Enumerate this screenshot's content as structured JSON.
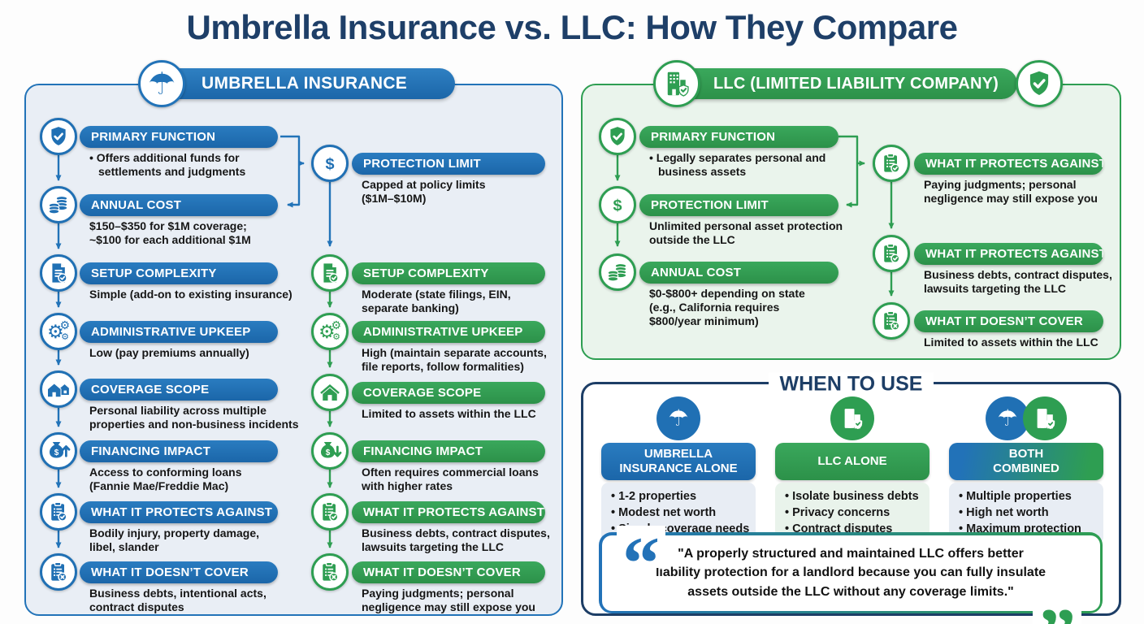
{
  "title": "Umbrella Insurance vs. LLC: How They Compare",
  "colors": {
    "blue": "#2070b4",
    "green": "#2e9e52",
    "navy": "#1d3e66",
    "panel_blue_bg": "#e9eef5",
    "panel_green_bg": "#eaf4ec"
  },
  "left_panel": {
    "header": "UMBRELLA INSURANCE",
    "header_icon": "umbrella-icon",
    "col_a": [
      {
        "icon": "shield-check-icon",
        "title": "PRIMARY FUNCTION",
        "body": "• Offers additional funds for\nsettlements and judgments"
      },
      {
        "icon": "coins-icon",
        "title": "ANNUAL COST",
        "body": "$150–$350 for $1M coverage;\n~$100 for each additional $1M"
      },
      {
        "icon": "document-check-icon",
        "title": "SETUP COMPLEXITY",
        "body": "Simple (add-on to existing insurance)"
      },
      {
        "icon": "gears-icon",
        "title": "ADMINISTRATIVE UPKEEP",
        "body": "Low (pay premiums annually)"
      },
      {
        "icon": "houses-icon",
        "title": "COVERAGE SCOPE",
        "body": "Personal liability across multiple\nproperties and non-business incidents"
      },
      {
        "icon": "money-bag-up-icon",
        "title": "FINANCING IMPACT",
        "body": "Access to conforming loans\n(Fannie Mae/Freddie Mac)"
      },
      {
        "icon": "clipboard-check-icon",
        "title": "WHAT IT PROTECTS AGAINST",
        "body": "Bodily injury, property damage,\nlibel, slander"
      },
      {
        "icon": "clipboard-x-icon",
        "title": "WHAT IT DOESN’T COVER",
        "body": "Business debts, intentional acts,\ncontract disputes"
      }
    ],
    "col_b": [
      {
        "icon": "dollar-icon",
        "title": "PROTECTION LIMIT",
        "body": "Capped at policy limits\n($1M–$10M)"
      },
      {
        "icon": "document-check-icon",
        "title": "SETUP COMPLEXITY",
        "body": "Moderate (state filings, EIN,\nseparate banking)"
      },
      {
        "icon": "gears-icon",
        "title": "ADMINISTRATIVE UPKEEP",
        "body": "High (maintain separate accounts,\nfile reports, follow formalities)"
      },
      {
        "icon": "house-icon",
        "title": "COVERAGE SCOPE",
        "body": "Limited to assets within the LLC"
      },
      {
        "icon": "money-bag-down-icon",
        "title": "FINANCING IMPACT",
        "body": "Often requires commercial loans\nwith higher rates"
      },
      {
        "icon": "clipboard-check-icon",
        "title": "WHAT IT PROTECTS AGAINST",
        "body": "Business debts, contract disputes,\nlawsuits targeting the LLC"
      },
      {
        "icon": "clipboard-x-icon",
        "title": "WHAT IT DOESN’T COVER",
        "body": "Paying judgments; personal\nnegligence may still expose you"
      }
    ]
  },
  "right_panel": {
    "header": "LLC (LIMITED LIABILITY COMPANY)",
    "header_icon_left": "building-shield-icon",
    "header_icon_right": "shield-check-icon",
    "col_a": [
      {
        "icon": "shield-check-icon",
        "title": "PRIMARY FUNCTION",
        "body": "• Legally separates personal and\nbusiness assets"
      },
      {
        "icon": "dollar-icon",
        "title": "PROTECTION LIMIT",
        "body": "Unlimited personal asset protection\noutside the LLC"
      },
      {
        "icon": "coins-icon",
        "title": "ANNUAL COST",
        "body": "$0-$800+ depending on state\n(e.g., California requires\n$800/year minimum)"
      }
    ],
    "col_b": [
      {
        "icon": "clipboard-check-icon",
        "title": "WHAT IT PROTECTS AGAINST",
        "body": "Paying judgments; personal\nnegligence may still expose you"
      },
      {
        "icon": "clipboard-check-icon",
        "title": "WHAT IT PROTECTS AGAINST",
        "body": "Business debts, contract disputes,\nlawsuits targeting the LLC"
      },
      {
        "icon": "clipboard-x-icon",
        "title": "WHAT IT DOESN’T COVER",
        "body": "Limited to assets within the LLC"
      }
    ]
  },
  "when_to_use": {
    "title": "WHEN TO USE",
    "cards": [
      {
        "icons": [
          "umbrella-icon"
        ],
        "title": "UMBRELLA\nINSURANCE ALONE",
        "bullets": [
          "1-2 properties",
          "Modest net worth",
          "Simple coverage needs"
        ]
      },
      {
        "icons": [
          "building-shield-icon"
        ],
        "title": "LLC ALONE",
        "bullets": [
          "Isolate business debts",
          "Privacy concerns",
          "Contract disputes"
        ]
      },
      {
        "icons": [
          "umbrella-icon",
          "building-shield-icon"
        ],
        "title": "BOTH\nCOMBINED",
        "bullets": [
          "Multiple properties",
          "High net worth",
          "Maximum protection"
        ]
      }
    ]
  },
  "quote": {
    "text": "\"A properly structured and maintained LLC offers better\nliability protection for a landlord because you can fully insulate\nassets outside the LLC without any coverage limits.\""
  }
}
